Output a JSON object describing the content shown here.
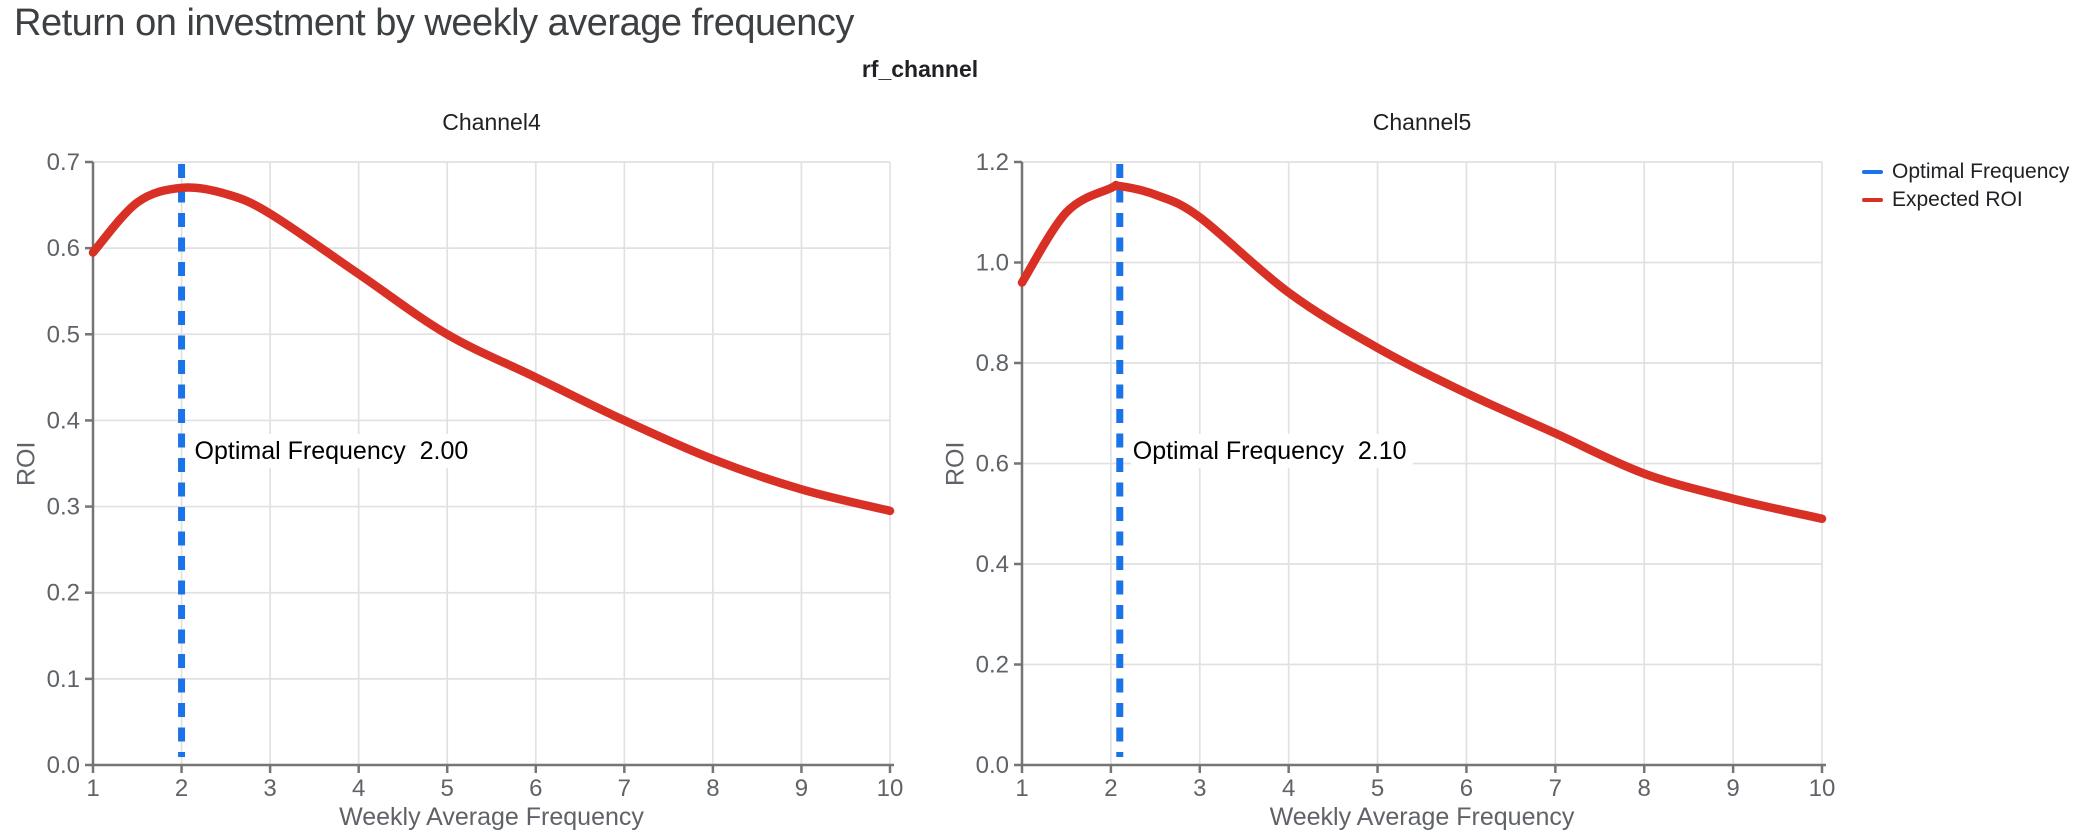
{
  "page": {
    "title": "Return on investment by weekly average frequency"
  },
  "style": {
    "optimal_color": "#1a73e8",
    "roi_color": "#d93025",
    "grid_color": "#e1e1e1",
    "spine_color": "#757575",
    "tick_label_color": "#5f6368",
    "axis_title_color": "#5f6368",
    "page_title_color": "#3c4043",
    "text_color": "#202124"
  },
  "legend": {
    "items": [
      {
        "label": "Optimal Frequency",
        "color": "#1a73e8"
      },
      {
        "label": "Expected ROI",
        "color": "#d93025"
      }
    ]
  },
  "chart_data": {
    "type": "line",
    "suptitle": "rf_channel",
    "xlabel": "Weekly Average Frequency",
    "ylabel": "ROI",
    "xlim": [
      1,
      10
    ],
    "xticks": [
      1,
      2,
      3,
      4,
      5,
      6,
      7,
      8,
      9,
      10
    ],
    "grid": true,
    "legend_position": "top-right",
    "subplots": [
      {
        "title": "Channel4",
        "ylim": [
          0,
          0.7
        ],
        "yticks": [
          0.0,
          0.1,
          0.2,
          0.3,
          0.4,
          0.5,
          0.6,
          0.7
        ],
        "optimal_frequency": 2.0,
        "annotation": "Optimal Frequency  2.00",
        "series": [
          {
            "name": "Expected ROI",
            "x": [
              1,
              1.5,
              2,
              2.5,
              3,
              4,
              5,
              6,
              7,
              8,
              9,
              10
            ],
            "y": [
              0.595,
              0.653,
              0.67,
              0.663,
              0.64,
              0.57,
              0.5,
              0.45,
              0.4,
              0.355,
              0.32,
              0.295
            ]
          }
        ]
      },
      {
        "title": "Channel5",
        "ylim": [
          0,
          1.2
        ],
        "yticks": [
          0.0,
          0.2,
          0.4,
          0.6,
          0.8,
          1.0,
          1.2
        ],
        "optimal_frequency": 2.1,
        "annotation": "Optimal Frequency  2.10",
        "series": [
          {
            "name": "Expected ROI",
            "x": [
              1,
              1.5,
              2,
              2.1,
              2.5,
              3,
              4,
              5,
              6,
              7,
              8,
              9,
              10
            ],
            "y": [
              0.96,
              1.1,
              1.148,
              1.152,
              1.135,
              1.09,
              0.94,
              0.83,
              0.74,
              0.66,
              0.58,
              0.53,
              0.49
            ]
          }
        ]
      }
    ]
  }
}
